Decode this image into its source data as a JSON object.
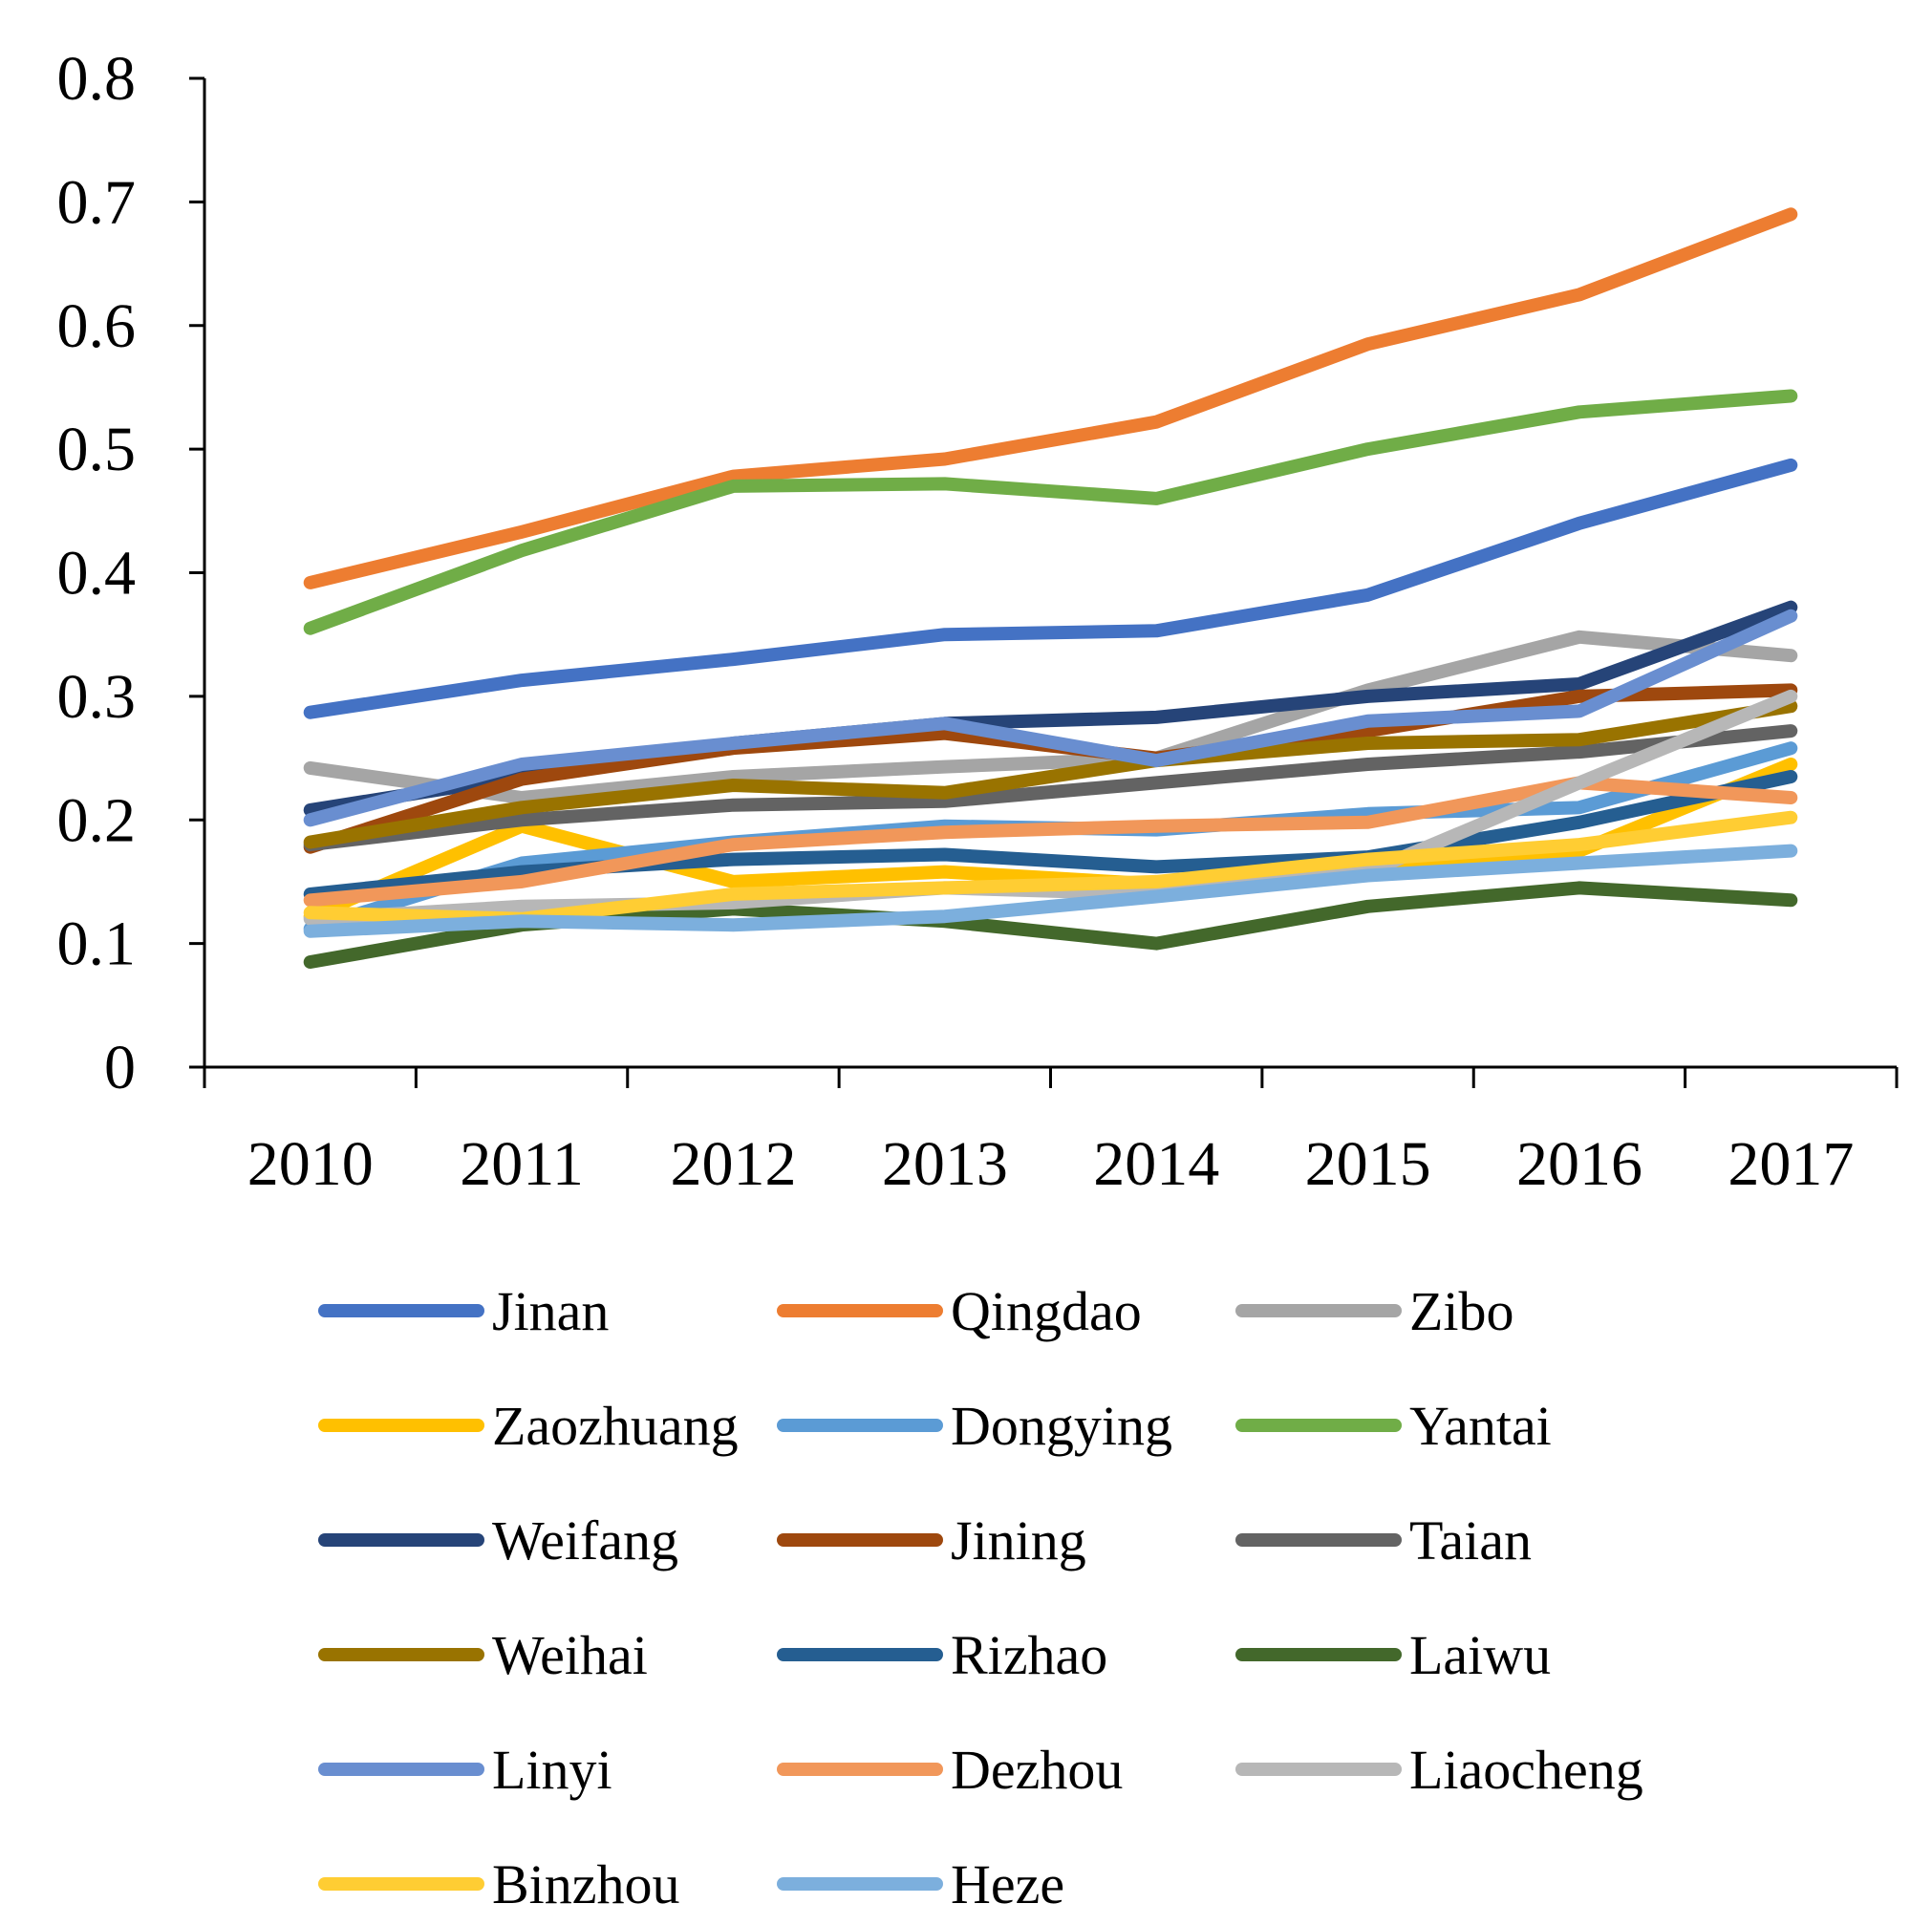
{
  "chart_data": {
    "type": "line",
    "title": "",
    "xlabel": "",
    "ylabel": "",
    "x": [
      "2010",
      "2011",
      "2012",
      "2013",
      "2014",
      "2015",
      "2016",
      "2017"
    ],
    "ylim": [
      0,
      0.8
    ],
    "yticks": [
      "0",
      "0.1",
      "0.2",
      "0.3",
      "0.4",
      "0.5",
      "0.6",
      "0.7",
      "0.8"
    ],
    "grid": false,
    "legend_position": "bottom",
    "series": [
      {
        "name": "Jinan",
        "color": "#4472C4",
        "values": [
          0.287,
          0.313,
          0.33,
          0.35,
          0.353,
          0.382,
          0.44,
          0.487
        ]
      },
      {
        "name": "Qingdao",
        "color": "#ED7D31",
        "values": [
          0.392,
          0.433,
          0.478,
          0.492,
          0.522,
          0.585,
          0.625,
          0.69
        ]
      },
      {
        "name": "Zibo",
        "color": "#A5A5A5",
        "values": [
          0.242,
          0.218,
          0.235,
          0.243,
          0.25,
          0.305,
          0.348,
          0.333
        ]
      },
      {
        "name": "Zaozhuang",
        "color": "#FFC000",
        "values": [
          0.122,
          0.195,
          0.15,
          0.158,
          0.148,
          0.165,
          0.175,
          0.245
        ]
      },
      {
        "name": "Dongying",
        "color": "#5B9BD5",
        "values": [
          0.112,
          0.165,
          0.182,
          0.195,
          0.192,
          0.205,
          0.21,
          0.258
        ]
      },
      {
        "name": "Yantai",
        "color": "#70AD47",
        "values": [
          0.355,
          0.418,
          0.47,
          0.472,
          0.46,
          0.5,
          0.53,
          0.543
        ]
      },
      {
        "name": "Weifang",
        "color": "#264478",
        "values": [
          0.208,
          0.235,
          0.262,
          0.278,
          0.283,
          0.3,
          0.31,
          0.372
        ]
      },
      {
        "name": "Jining",
        "color": "#9E480E",
        "values": [
          0.178,
          0.233,
          0.258,
          0.27,
          0.25,
          0.272,
          0.3,
          0.305
        ]
      },
      {
        "name": "Taian",
        "color": "#636363",
        "values": [
          0.18,
          0.2,
          0.212,
          0.215,
          0.23,
          0.245,
          0.255,
          0.272
        ]
      },
      {
        "name": "Weihai",
        "color": "#997300",
        "values": [
          0.182,
          0.21,
          0.228,
          0.222,
          0.248,
          0.262,
          0.265,
          0.292
        ]
      },
      {
        "name": "Rizhao",
        "color": "#255E91",
        "values": [
          0.14,
          0.158,
          0.168,
          0.172,
          0.162,
          0.17,
          0.198,
          0.235
        ]
      },
      {
        "name": "Laiwu",
        "color": "#43682B",
        "values": [
          0.085,
          0.115,
          0.128,
          0.118,
          0.1,
          0.13,
          0.145,
          0.135
        ]
      },
      {
        "name": "Linyi",
        "color": "#698ED0",
        "values": [
          0.2,
          0.245,
          0.262,
          0.278,
          0.248,
          0.28,
          0.288,
          0.365
        ]
      },
      {
        "name": "Dezhou",
        "color": "#F1975A",
        "values": [
          0.135,
          0.15,
          0.18,
          0.19,
          0.195,
          0.198,
          0.23,
          0.218
        ]
      },
      {
        "name": "Liaocheng",
        "color": "#B7B7B7",
        "values": [
          0.12,
          0.13,
          0.133,
          0.145,
          0.14,
          0.158,
          0.23,
          0.3
        ]
      },
      {
        "name": "Binzhou",
        "color": "#FFCD33",
        "values": [
          0.125,
          0.12,
          0.14,
          0.145,
          0.15,
          0.168,
          0.18,
          0.202
        ]
      },
      {
        "name": "Heze",
        "color": "#7CAFDD",
        "values": [
          0.11,
          0.118,
          0.115,
          0.122,
          0.138,
          0.155,
          0.165,
          0.175
        ]
      }
    ]
  }
}
